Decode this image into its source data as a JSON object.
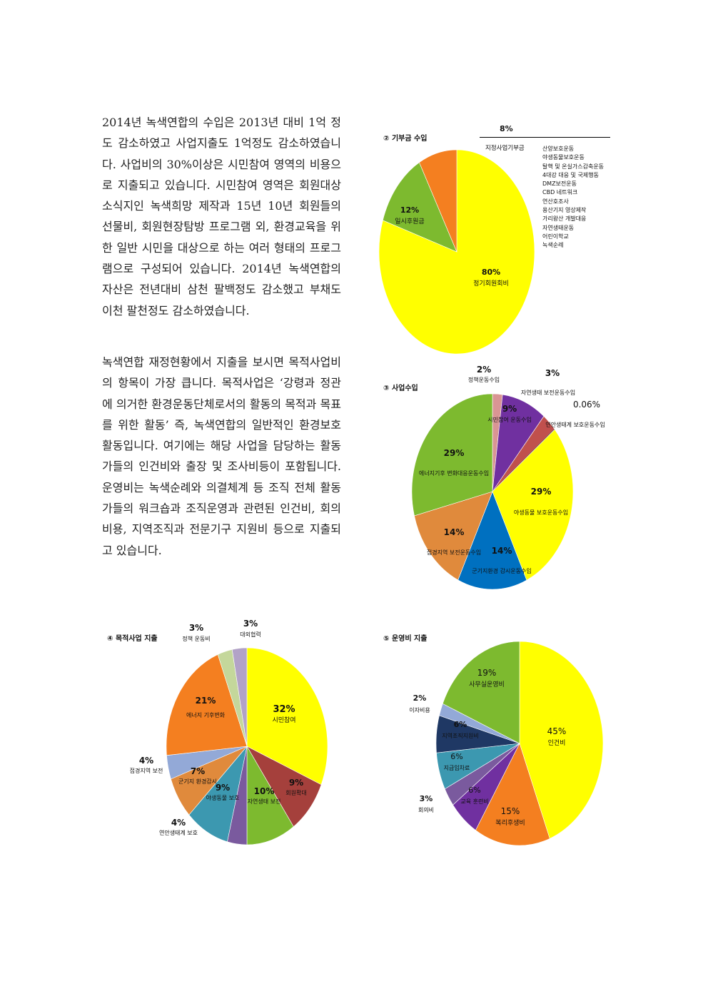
{
  "paragraphs": [
    "2014년 녹색연합의 수입은 2013년 대비 1억 정도 감소하였고 사업지출도 1억정도 감소하였습니다. 사업비의 30%이상은 시민참여 영역의 비용으로 지출되고 있습니다. 시민참여 영역은 회원대상 소식지인 녹색희망 제작과 15년 10년 회원들의 선물비, 회원현장탐방 프로그램 외, 환경교육을 위한 일반 시민을 대상으로 하는 여러 형태의 프로그램으로 구성되어 있습니다. 2014년 녹색연합의 자산은 전년대비 삼천 팔백정도 감소했고 부채도 이천 팔천정도 감소하였습니다.",
    "녹색연합 재정현황에서 지출을 보시면 목적사업비의 항목이 가장 큽니다. 목적사업은 ‘강령과 정관에 의거한 환경운동단체로서의 활동의 목적과 목표를 위한 활동’ 즉, 녹색연합의 일반적인 환경보호활동입니다. 여기에는 해당 사업을 담당하는 활동가들의 인건비와 출장 및 조사비등이 포함됩니다. 운영비는 녹색순례와 의결체계 등 조직 전체 활동가들의 워크숍과 조직운영과 관련된 인건비, 회의비용, 지역조직과 전문기구 지원비 등으로 지출되고 있습니다."
  ],
  "chart_data": [
    {
      "id": "donation",
      "type": "pie",
      "title": "② 기부금 수입",
      "slices": [
        {
          "pct": "80%",
          "label": "정기회원회비",
          "value": 80,
          "color": "#ffff00"
        },
        {
          "pct": "12%",
          "label": "일시후원금",
          "value": 12,
          "color": "#7dba2f"
        },
        {
          "pct": "8%",
          "label": "지정사업기부금",
          "value": 8,
          "color": "#f47f20"
        }
      ],
      "legend": [
        "산양보호운동",
        "야생동물보호운동",
        "탈핵 및 온실가스감축운동",
        "4대강 대응 및 국제행동",
        "DMZ보전운동",
        "CBD 네트워크",
        "연산호조사",
        "용산기지 영상제작",
        "가리왕산 개발대응",
        "자연생태운동",
        "어린이학교",
        "녹색순례"
      ]
    },
    {
      "id": "project_income",
      "type": "pie",
      "title": "③ 사업수입",
      "slices": [
        {
          "pct": "2%",
          "label": "정책운동수입",
          "value": 2,
          "color": "#d99594"
        },
        {
          "pct": "9%",
          "label": "시민참여 운동수입",
          "value": 9,
          "color": "#7030a0"
        },
        {
          "pct": "3%",
          "label": "자연생태 보전운동수입",
          "value": 3,
          "color": "#c0504d"
        },
        {
          "pct": "0.06%",
          "label": "연안생태계 보호운동수입",
          "value": 0.06,
          "color": "#7f7f7f"
        },
        {
          "pct": "29%",
          "label": "야생동물 보호운동수입",
          "value": 29,
          "color": "#ffff00"
        },
        {
          "pct": "14%",
          "label": "군기지환경 감시운동수입",
          "value": 14,
          "color": "#0070c0"
        },
        {
          "pct": "14%",
          "label": "접경지역 보전운동수입",
          "value": 14,
          "color": "#e08a3c"
        },
        {
          "pct": "29%",
          "label": "에너지기후 변화대응운동수입",
          "value": 29,
          "color": "#7dba2f"
        }
      ]
    },
    {
      "id": "purpose_expense",
      "type": "pie",
      "title": "④ 목적사업 지출",
      "slices": [
        {
          "pct": "32%",
          "label": "시민참여",
          "value": 32,
          "color": "#ffff00"
        },
        {
          "pct": "9%",
          "label": "회원확대",
          "value": 9,
          "color": "#a5403c"
        },
        {
          "pct": "10%",
          "label": "자연생태 보전",
          "value": 10,
          "color": "#7dba2f"
        },
        {
          "pct": "4%",
          "label": "연안생태계 보호",
          "value": 4,
          "color": "#7a5a9e"
        },
        {
          "pct": "9%",
          "label": "야생동물 보호",
          "value": 9,
          "color": "#3c98b0"
        },
        {
          "pct": "7%",
          "label": "군기지 환경감시",
          "value": 7,
          "color": "#e08a3c"
        },
        {
          "pct": "4%",
          "label": "접경지역 보전",
          "value": 4,
          "color": "#93a9d7"
        },
        {
          "pct": "21%",
          "label": "에너지 기후변화",
          "value": 21,
          "color": "#f47f20"
        },
        {
          "pct": "3%",
          "label": "정책 운동비",
          "value": 3,
          "color": "#c4d79b"
        },
        {
          "pct": "3%",
          "label": "대외협력",
          "value": 3,
          "color": "#b2a2c7"
        }
      ]
    },
    {
      "id": "operating_expense",
      "type": "pie",
      "title": "⑤ 운영비 지출",
      "slices": [
        {
          "pct": "45%",
          "label": "인건비",
          "value": 45,
          "color": "#ffff00"
        },
        {
          "pct": "15%",
          "label": "복리후생비",
          "value": 15,
          "color": "#f47f20"
        },
        {
          "pct": "6%",
          "label": "교육 훈련비",
          "value": 6,
          "color": "#7030a0"
        },
        {
          "pct": "3%",
          "label": "회의비",
          "value": 3,
          "color": "#7a5a9e"
        },
        {
          "pct": "6%",
          "label": "지급임차료",
          "value": 6,
          "color": "#3c98b0"
        },
        {
          "pct": "6%",
          "label": "지역조직지원비",
          "value": 6,
          "color": "#1f3864"
        },
        {
          "pct": "2%",
          "label": "이자비용",
          "value": 2,
          "color": "#93a9d7"
        },
        {
          "pct": "19%",
          "label": "사무실운영비",
          "value": 19,
          "color": "#7dba2f"
        }
      ]
    }
  ]
}
